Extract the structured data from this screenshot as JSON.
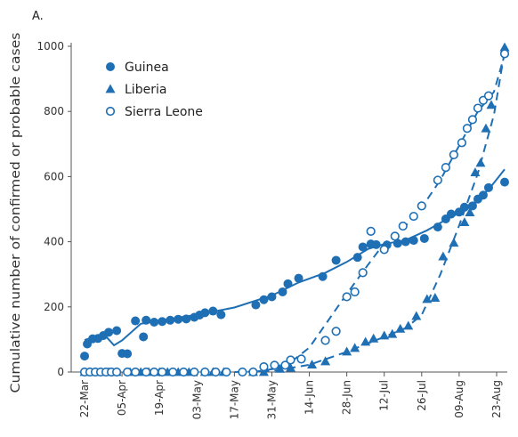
{
  "panel_label": "A.",
  "chart_data": {
    "type": "scatter",
    "title": "",
    "xlabel": "",
    "ylabel": "Cumulative number of confirmed or probable cases",
    "ylim": [
      0,
      1000
    ],
    "xlim": [
      "2014-03-17",
      "2014-08-27"
    ],
    "yticks": [
      0,
      200,
      400,
      600,
      800,
      1000
    ],
    "xticks": [
      {
        "date": "2014-03-22",
        "label": "22-Mar"
      },
      {
        "date": "2014-04-05",
        "label": "05-Apr"
      },
      {
        "date": "2014-04-19",
        "label": "19-Apr"
      },
      {
        "date": "2014-05-03",
        "label": "03-May"
      },
      {
        "date": "2014-05-17",
        "label": "17-May"
      },
      {
        "date": "2014-05-31",
        "label": "31-May"
      },
      {
        "date": "2014-06-14",
        "label": "14-Jun"
      },
      {
        "date": "2014-06-28",
        "label": "28-Jun"
      },
      {
        "date": "2014-07-12",
        "label": "12-Jul"
      },
      {
        "date": "2014-07-26",
        "label": "26-Jul"
      },
      {
        "date": "2014-08-09",
        "label": "09-Aug"
      },
      {
        "date": "2014-08-23",
        "label": "23-Aug"
      }
    ],
    "grid": false,
    "legend_position": "top-left",
    "series": [
      {
        "name": "Guinea",
        "marker": "circle-filled",
        "color": "#1f6fb5",
        "points": [
          [
            "2014-03-22",
            49
          ],
          [
            "2014-03-23",
            86
          ],
          [
            "2014-03-25",
            102
          ],
          [
            "2014-03-27",
            103
          ],
          [
            "2014-03-29",
            112
          ],
          [
            "2014-03-31",
            122
          ],
          [
            "2014-04-03",
            127
          ],
          [
            "2014-04-05",
            57
          ],
          [
            "2014-04-07",
            56
          ],
          [
            "2014-04-10",
            157
          ],
          [
            "2014-04-13",
            108
          ],
          [
            "2014-04-14",
            159
          ],
          [
            "2014-04-17",
            153
          ],
          [
            "2014-04-20",
            155
          ],
          [
            "2014-04-23",
            159
          ],
          [
            "2014-04-26",
            162
          ],
          [
            "2014-04-29",
            163
          ],
          [
            "2014-05-02",
            168
          ],
          [
            "2014-05-04",
            175
          ],
          [
            "2014-05-06",
            182
          ],
          [
            "2014-05-09",
            187
          ],
          [
            "2014-05-12",
            176
          ],
          [
            "2014-05-25",
            206
          ],
          [
            "2014-05-28",
            222
          ],
          [
            "2014-05-31",
            231
          ],
          [
            "2014-06-04",
            246
          ],
          [
            "2014-06-06",
            271
          ],
          [
            "2014-06-10",
            288
          ],
          [
            "2014-06-19",
            293
          ],
          [
            "2014-06-24",
            343
          ],
          [
            "2014-07-02",
            352
          ],
          [
            "2014-07-04",
            384
          ],
          [
            "2014-07-07",
            393
          ],
          [
            "2014-07-09",
            391
          ],
          [
            "2014-07-13",
            390
          ],
          [
            "2014-07-17",
            395
          ],
          [
            "2014-07-20",
            400
          ],
          [
            "2014-07-23",
            404
          ],
          [
            "2014-07-27",
            410
          ],
          [
            "2014-08-01",
            445
          ],
          [
            "2014-08-04",
            470
          ],
          [
            "2014-08-06",
            485
          ],
          [
            "2014-08-09",
            491
          ],
          [
            "2014-08-11",
            506
          ],
          [
            "2014-08-14",
            510
          ],
          [
            "2014-08-16",
            531
          ],
          [
            "2014-08-18",
            543
          ],
          [
            "2014-08-20",
            566
          ],
          [
            "2014-08-26",
            583
          ]
        ],
        "trend": [
          [
            "2014-03-22",
            98
          ],
          [
            "2014-03-29",
            118
          ],
          [
            "2014-04-02",
            82
          ],
          [
            "2014-04-05",
            97
          ],
          [
            "2014-04-12",
            148
          ],
          [
            "2014-04-19",
            158
          ],
          [
            "2014-05-03",
            176
          ],
          [
            "2014-05-17",
            198
          ],
          [
            "2014-05-31",
            235
          ],
          [
            "2014-06-10",
            275
          ],
          [
            "2014-06-20",
            305
          ],
          [
            "2014-06-28",
            338
          ],
          [
            "2014-07-06",
            378
          ],
          [
            "2014-07-12",
            393
          ],
          [
            "2014-07-20",
            405
          ],
          [
            "2014-07-28",
            435
          ],
          [
            "2014-08-05",
            472
          ],
          [
            "2014-08-12",
            500
          ],
          [
            "2014-08-20",
            560
          ],
          [
            "2014-08-26",
            622
          ]
        ]
      },
      {
        "name": "Liberia",
        "marker": "triangle-filled",
        "color": "#1f6fb5",
        "points": [
          [
            "2014-03-22",
            0
          ],
          [
            "2014-03-24",
            0
          ],
          [
            "2014-03-26",
            0
          ],
          [
            "2014-03-28",
            0
          ],
          [
            "2014-03-31",
            0
          ],
          [
            "2014-04-03",
            0
          ],
          [
            "2014-04-08",
            0
          ],
          [
            "2014-04-12",
            0
          ],
          [
            "2014-04-15",
            0
          ],
          [
            "2014-04-19",
            0
          ],
          [
            "2014-04-22",
            0
          ],
          [
            "2014-04-26",
            0
          ],
          [
            "2014-04-30",
            0
          ],
          [
            "2014-05-06",
            0
          ],
          [
            "2014-05-09",
            0
          ],
          [
            "2014-05-13",
            0
          ],
          [
            "2014-05-24",
            0
          ],
          [
            "2014-05-28",
            0
          ],
          [
            "2014-06-03",
            10
          ],
          [
            "2014-06-07",
            13
          ],
          [
            "2014-06-15",
            23
          ],
          [
            "2014-06-20",
            33
          ],
          [
            "2014-06-28",
            63
          ],
          [
            "2014-07-01",
            74
          ],
          [
            "2014-07-05",
            93
          ],
          [
            "2014-07-08",
            103
          ],
          [
            "2014-07-12",
            112
          ],
          [
            "2014-07-15",
            117
          ],
          [
            "2014-07-18",
            133
          ],
          [
            "2014-07-21",
            142
          ],
          [
            "2014-07-24",
            172
          ],
          [
            "2014-07-28",
            224
          ],
          [
            "2014-07-31",
            228
          ],
          [
            "2014-08-03",
            355
          ],
          [
            "2014-08-07",
            397
          ],
          [
            "2014-08-11",
            460
          ],
          [
            "2014-08-13",
            490
          ],
          [
            "2014-08-15",
            613
          ],
          [
            "2014-08-17",
            642
          ],
          [
            "2014-08-19",
            748
          ],
          [
            "2014-08-21",
            820
          ],
          [
            "2014-08-26",
            997
          ]
        ],
        "trend": [
          [
            "2014-05-17",
            0
          ],
          [
            "2014-05-31",
            3
          ],
          [
            "2014-06-14",
            22
          ],
          [
            "2014-06-28",
            62
          ],
          [
            "2014-07-12",
            108
          ],
          [
            "2014-07-20",
            135
          ],
          [
            "2014-07-26",
            175
          ],
          [
            "2014-08-02",
            300
          ],
          [
            "2014-08-09",
            450
          ],
          [
            "2014-08-16",
            610
          ],
          [
            "2014-08-22",
            790
          ],
          [
            "2014-08-26",
            985
          ]
        ]
      },
      {
        "name": "Sierra Leone",
        "marker": "circle-open",
        "color": "#1f6fb5",
        "points": [
          [
            "2014-03-22",
            0
          ],
          [
            "2014-03-24",
            0
          ],
          [
            "2014-03-26",
            0
          ],
          [
            "2014-03-28",
            0
          ],
          [
            "2014-03-30",
            0
          ],
          [
            "2014-04-01",
            0
          ],
          [
            "2014-04-03",
            0
          ],
          [
            "2014-04-07",
            0
          ],
          [
            "2014-04-10",
            0
          ],
          [
            "2014-04-14",
            0
          ],
          [
            "2014-04-17",
            0
          ],
          [
            "2014-04-20",
            0
          ],
          [
            "2014-04-24",
            0
          ],
          [
            "2014-04-28",
            0
          ],
          [
            "2014-05-02",
            0
          ],
          [
            "2014-05-06",
            0
          ],
          [
            "2014-05-10",
            0
          ],
          [
            "2014-05-14",
            0
          ],
          [
            "2014-05-20",
            0
          ],
          [
            "2014-05-24",
            0
          ],
          [
            "2014-05-28",
            16
          ],
          [
            "2014-06-01",
            21
          ],
          [
            "2014-06-05",
            21
          ],
          [
            "2014-06-07",
            37
          ],
          [
            "2014-06-11",
            40
          ],
          [
            "2014-06-20",
            97
          ],
          [
            "2014-06-24",
            125
          ],
          [
            "2014-06-28",
            231
          ],
          [
            "2014-07-01",
            246
          ],
          [
            "2014-07-04",
            305
          ],
          [
            "2014-07-07",
            432
          ],
          [
            "2014-07-12",
            376
          ],
          [
            "2014-07-16",
            417
          ],
          [
            "2014-07-19",
            448
          ],
          [
            "2014-07-23",
            478
          ],
          [
            "2014-07-26",
            510
          ],
          [
            "2014-08-01",
            589
          ],
          [
            "2014-08-04",
            628
          ],
          [
            "2014-08-07",
            667
          ],
          [
            "2014-08-10",
            704
          ],
          [
            "2014-08-12",
            748
          ],
          [
            "2014-08-14",
            775
          ],
          [
            "2014-08-16",
            810
          ],
          [
            "2014-08-18",
            834
          ],
          [
            "2014-08-20",
            848
          ],
          [
            "2014-08-26",
            977
          ]
        ],
        "trend": [
          [
            "2014-05-24",
            0
          ],
          [
            "2014-06-01",
            10
          ],
          [
            "2014-06-07",
            30
          ],
          [
            "2014-06-14",
            75
          ],
          [
            "2014-06-28",
            240
          ],
          [
            "2014-07-06",
            330
          ],
          [
            "2014-07-12",
            395
          ],
          [
            "2014-07-19",
            440
          ],
          [
            "2014-07-26",
            505
          ],
          [
            "2014-08-02",
            590
          ],
          [
            "2014-08-09",
            695
          ],
          [
            "2014-08-16",
            800
          ],
          [
            "2014-08-22",
            860
          ],
          [
            "2014-08-26",
            975
          ]
        ]
      }
    ]
  }
}
